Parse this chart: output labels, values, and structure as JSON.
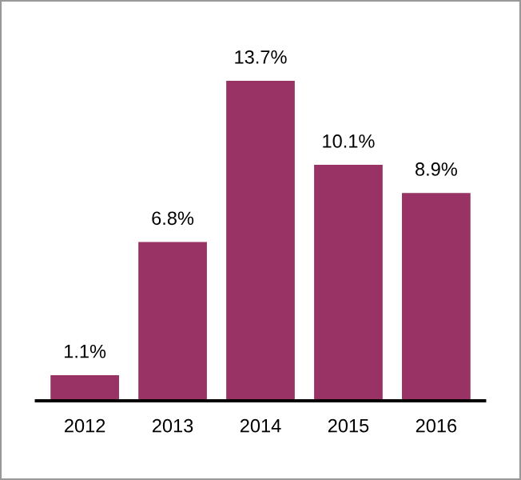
{
  "chart_data": {
    "type": "bar",
    "categories": [
      "2012",
      "2013",
      "2014",
      "2015",
      "2016"
    ],
    "values": [
      1.1,
      6.8,
      13.7,
      10.1,
      8.9
    ],
    "value_labels": [
      "1.1%",
      "6.8%",
      "13.7%",
      "10.1%",
      "8.9%"
    ],
    "color": "#993366",
    "grid": false,
    "legend": false
  }
}
